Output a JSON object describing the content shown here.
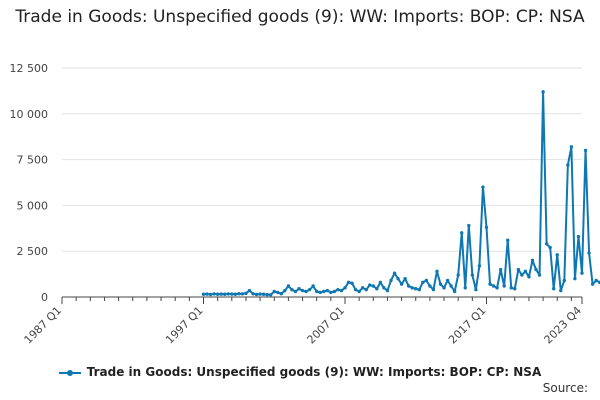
{
  "title": "Trade in Goods: Unspecified goods (9): WW: Imports: BOP: CP: NSA",
  "source_label": "Source:",
  "colors": {
    "series": "#0f77b2",
    "grid": "#e2e2e2",
    "axis": "#444444",
    "background": "#ffffff"
  },
  "chart_data": {
    "type": "line",
    "title": "Trade in Goods: Unspecified goods (9): WW: Imports: BOP: CP: NSA",
    "xlabel": "",
    "ylabel": "",
    "x_tick_labels": [
      "1987 Q1",
      "1997 Q1",
      "2007 Q1",
      "2017 Q1",
      "2023 Q4"
    ],
    "x_tick_positions": [
      1987.0,
      1997.0,
      2007.0,
      2017.0,
      2023.75
    ],
    "x_range": [
      1987.0,
      2023.75
    ],
    "ylim": [
      0,
      12500
    ],
    "y_ticks": [
      0,
      2500,
      5000,
      7500,
      10000,
      12500
    ],
    "y_tick_labels": [
      "0",
      "2 500",
      "5 000",
      "7 500",
      "10 000",
      "12 500"
    ],
    "grid": true,
    "legend_position": "bottom",
    "series": [
      {
        "name": "Trade in Goods: Unspecified goods (9): WW: Imports: BOP: CP: NSA",
        "start": "1997 Q1",
        "frequency": "quarterly",
        "values": [
          150,
          160,
          140,
          170,
          150,
          160,
          150,
          170,
          160,
          150,
          180,
          170,
          200,
          350,
          180,
          140,
          160,
          150,
          130,
          120,
          300,
          250,
          180,
          350,
          600,
          400,
          300,
          450,
          350,
          300,
          400,
          600,
          300,
          250,
          300,
          350,
          250,
          300,
          400,
          350,
          500,
          800,
          750,
          400,
          300,
          500,
          400,
          650,
          600,
          450,
          800,
          500,
          350,
          900,
          1300,
          1000,
          700,
          1000,
          600,
          500,
          450,
          400,
          800,
          900,
          600,
          400,
          1400,
          700,
          500,
          900,
          600,
          300,
          1200,
          3500,
          500,
          3900,
          1200,
          400,
          1700,
          6000,
          3800,
          700,
          600,
          500,
          1500,
          600,
          3100,
          500,
          450,
          1500,
          1200,
          1400,
          1100,
          2000,
          1500,
          1200,
          11200,
          2900,
          2700,
          450,
          2300,
          350,
          900,
          7200,
          8200,
          1000,
          3300,
          1300,
          8000,
          2400,
          700,
          900,
          800,
          700,
          750,
          600,
          850
        ]
      }
    ]
  }
}
